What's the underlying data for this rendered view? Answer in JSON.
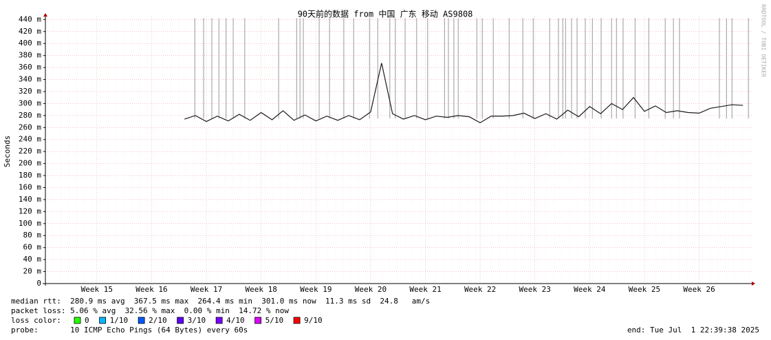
{
  "chart_data": {
    "type": "line",
    "title": "90天前的数据 from 中国 广东 移动 AS9808",
    "y_label": "Seconds",
    "side_note": "RRDTOOL / TOBI OETIKER",
    "xlim": [
      14.06,
      26.96
    ],
    "xticks": [
      {
        "value": 15,
        "label": "Week 15"
      },
      {
        "value": 16,
        "label": "Week 16"
      },
      {
        "value": 17,
        "label": "Week 17"
      },
      {
        "value": 18,
        "label": "Week 18"
      },
      {
        "value": 19,
        "label": "Week 19"
      },
      {
        "value": 20,
        "label": "Week 20"
      },
      {
        "value": 21,
        "label": "Week 21"
      },
      {
        "value": 22,
        "label": "Week 22"
      },
      {
        "value": 23,
        "label": "Week 23"
      },
      {
        "value": 24,
        "label": "Week 24"
      },
      {
        "value": 25,
        "label": "Week 25"
      },
      {
        "value": 26,
        "label": "Week 26"
      }
    ],
    "ylim": [
      0,
      0.445
    ],
    "yticks": [
      0,
      {
        "value": 0.02,
        "label": "20 m"
      },
      {
        "value": 0.04,
        "label": "40 m"
      },
      {
        "value": 0.06,
        "label": "60 m"
      },
      {
        "value": 0.08,
        "label": "80 m"
      },
      {
        "value": 0.1,
        "label": "100 m"
      },
      {
        "value": 0.12,
        "label": "120 m"
      },
      {
        "value": 0.14,
        "label": "140 m"
      },
      {
        "value": 0.16,
        "label": "160 m"
      },
      {
        "value": 0.18,
        "label": "180 m"
      },
      {
        "value": 0.2,
        "label": "200 m"
      },
      {
        "value": 0.22,
        "label": "220 m"
      },
      {
        "value": 0.24,
        "label": "240 m"
      },
      {
        "value": 0.26,
        "label": "260 m"
      },
      {
        "value": 0.28,
        "label": "280 m"
      },
      {
        "value": 0.3,
        "label": "300 m"
      },
      {
        "value": 0.32,
        "label": "320 m"
      },
      {
        "value": 0.34,
        "label": "340 m"
      },
      {
        "value": 0.36,
        "label": "360 m"
      },
      {
        "value": 0.38,
        "label": "380 m"
      },
      {
        "value": 0.4,
        "label": "400 m"
      },
      {
        "value": 0.42,
        "label": "420 m"
      },
      {
        "value": 0.44,
        "label": "440 m"
      }
    ],
    "grid": true,
    "x": [
      16.6,
      16.8,
      17.0,
      17.2,
      17.4,
      17.6,
      17.8,
      18.0,
      18.2,
      18.4,
      18.6,
      18.8,
      19.0,
      19.2,
      19.4,
      19.6,
      19.8,
      20.0,
      20.2,
      20.4,
      20.6,
      20.8,
      21.0,
      21.2,
      21.4,
      21.6,
      21.8,
      22.0,
      22.2,
      22.4,
      22.6,
      22.8,
      23.0,
      23.2,
      23.4,
      23.6,
      23.8,
      24.0,
      24.2,
      24.4,
      24.6,
      24.8,
      25.0,
      25.2,
      25.4,
      25.6,
      25.8,
      26.0,
      26.2,
      26.4,
      26.6,
      26.8
    ],
    "series": [
      {
        "color": "#1a1a1a",
        "values": [
          0.274,
          0.28,
          0.27,
          0.279,
          0.271,
          0.282,
          0.272,
          0.285,
          0.273,
          0.288,
          0.272,
          0.281,
          0.271,
          0.279,
          0.272,
          0.28,
          0.273,
          0.286,
          0.3675,
          0.283,
          0.274,
          0.28,
          0.273,
          0.279,
          0.277,
          0.28,
          0.278,
          0.268,
          0.279,
          0.279,
          0.28,
          0.284,
          0.275,
          0.283,
          0.274,
          0.289,
          0.278,
          0.295,
          0.283,
          0.3,
          0.29,
          0.31,
          0.287,
          0.296,
          0.285,
          0.288,
          0.285,
          0.284,
          0.292,
          0.295,
          0.298,
          0.297
        ]
      }
    ],
    "loss_color_line": "#aaaaaa",
    "loss_x": [
      16.79,
      16.95,
      17.1,
      17.23,
      17.36,
      17.49,
      17.7,
      18.32,
      18.65,
      18.71,
      18.77,
      19.06,
      19.25,
      19.51,
      19.69,
      19.98,
      20.13,
      20.35,
      20.45,
      20.63,
      20.84,
      21.04,
      21.35,
      21.42,
      21.52,
      21.6,
      21.94,
      22.04,
      22.24,
      22.53,
      22.78,
      22.97,
      23.27,
      23.43,
      23.51,
      23.56,
      23.67,
      23.77,
      23.92,
      24.05,
      24.21,
      24.4,
      24.49,
      24.61,
      24.83,
      25.08,
      25.38,
      25.53,
      25.64,
      26.37,
      26.5,
      26.6,
      26.9
    ],
    "footer": {
      "median": "median rtt:  280.9 ms avg  367.5 ms max  264.4 ms min  301.0 ms now  11.3 ms sd  24.8   am/s",
      "loss": "packet loss: 5.06 % avg  32.56 % max  0.00 % min  14.72 % now",
      "probe": "probe:       10 ICMP Echo Pings (64 Bytes) every 60s",
      "end": "end: Tue Jul  1 22:39:38 2025"
    },
    "loss_legend": {
      "label": "loss color:",
      "items": [
        {
          "name": "0",
          "color": "#26ff00"
        },
        {
          "name": "1/10",
          "color": "#00b8ff"
        },
        {
          "name": "2/10",
          "color": "#0059ff"
        },
        {
          "name": "3/10",
          "color": "#5e00ff"
        },
        {
          "name": "4/10",
          "color": "#7e00ff"
        },
        {
          "name": "5/10",
          "color": "#dd00ff"
        },
        {
          "name": "9/10",
          "color": "#ff0000"
        }
      ]
    }
  }
}
